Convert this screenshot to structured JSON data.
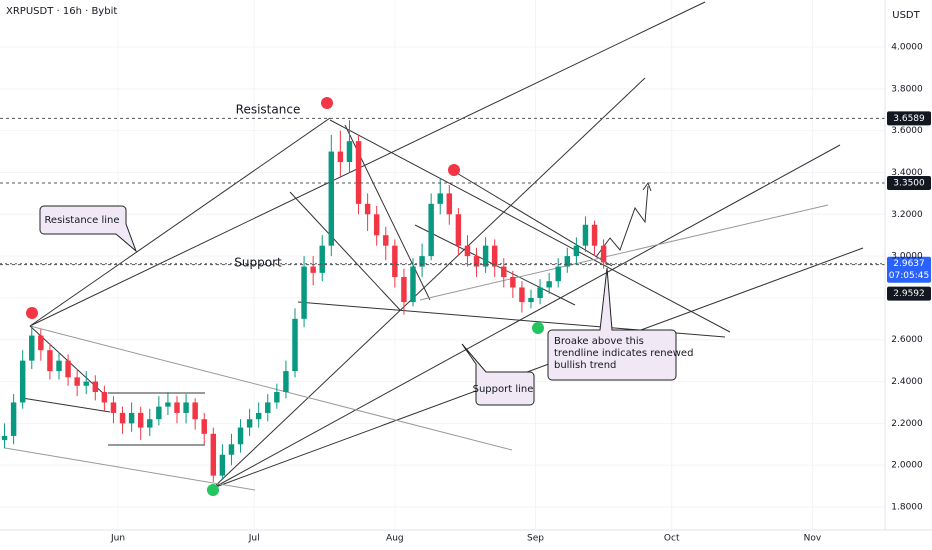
{
  "chart_data": {
    "type": "candlestick",
    "title": "XRPUSDT · 16h · Bybit",
    "currency": "USDT",
    "countdown": "07:05:45",
    "up_color": "#089981",
    "down_color": "#f23645",
    "xlim": [
      -1,
      194
    ],
    "xticks": [
      {
        "value": 25,
        "label": "Jun"
      },
      {
        "value": 55,
        "label": "Jul"
      },
      {
        "value": 86,
        "label": "Aug"
      },
      {
        "value": 117,
        "label": "Sep"
      },
      {
        "value": 147,
        "label": "Oct"
      },
      {
        "value": 178,
        "label": "Nov"
      }
    ],
    "ylim": [
      1.69,
      4.225
    ],
    "yticks": [
      {
        "value": 4,
        "label": "4.0000"
      },
      {
        "value": 3.8,
        "label": "3.8000"
      },
      {
        "value": 3.6,
        "label": "3.6000"
      },
      {
        "value": 3.4,
        "label": "3.4000"
      },
      {
        "value": 3.2,
        "label": "3.2000"
      },
      {
        "value": 3,
        "label": "3.0000"
      },
      {
        "value": 2.8,
        "label": "2.8000"
      },
      {
        "value": 2.6,
        "label": "2.6000"
      },
      {
        "value": 2.4,
        "label": "2.4000"
      },
      {
        "value": 2.2,
        "label": "2.2000"
      },
      {
        "value": 2,
        "label": "2.0000"
      },
      {
        "value": 1.8,
        "label": "1.8000"
      }
    ],
    "price_lines": [
      {
        "value": 3.6589,
        "label": "3.6589"
      },
      {
        "value": 3.35,
        "label": "3.3500"
      },
      {
        "value": 2.9637,
        "label": "2.9637",
        "current": true
      },
      {
        "value": 2.9592,
        "label": "2.9592"
      }
    ],
    "x": [
      0,
      2,
      4,
      6,
      8,
      10,
      12,
      14,
      16,
      18,
      20,
      22,
      24,
      26,
      28,
      30,
      32,
      34,
      36,
      38,
      40,
      42,
      44,
      46,
      48,
      50,
      52,
      54,
      56,
      58,
      60,
      62,
      64,
      66,
      68,
      70,
      72,
      74,
      76,
      78,
      80,
      82,
      84,
      86,
      88,
      90,
      92,
      94,
      96,
      98,
      100,
      102,
      104,
      106,
      108,
      110,
      112,
      114,
      116,
      118,
      120,
      122,
      124,
      126,
      128,
      130,
      132
    ],
    "open": [
      2.12,
      2.14,
      2.3,
      2.5,
      2.62,
      2.55,
      2.45,
      2.5,
      2.42,
      2.38,
      2.4,
      2.35,
      2.3,
      2.25,
      2.2,
      2.25,
      2.18,
      2.22,
      2.28,
      2.3,
      2.25,
      2.3,
      2.22,
      2.15,
      1.95,
      2.05,
      2.1,
      2.18,
      2.22,
      2.25,
      2.3,
      2.35,
      2.45,
      2.7,
      2.95,
      2.92,
      3.05,
      3.5,
      3.45,
      3.55,
      3.25,
      3.2,
      3.1,
      3.05,
      2.9,
      2.78,
      2.95,
      3.0,
      3.25,
      3.3,
      3.2,
      3.05,
      3.0,
      2.95,
      3.05,
      2.95,
      2.9,
      2.85,
      2.78,
      2.8,
      2.85,
      2.88,
      2.95,
      3.0,
      3.05,
      3.15,
      3.05
    ],
    "high": [
      2.2,
      2.34,
      2.55,
      2.67,
      2.65,
      2.58,
      2.54,
      2.53,
      2.46,
      2.45,
      2.43,
      2.38,
      2.33,
      2.28,
      2.3,
      2.28,
      2.27,
      2.33,
      2.35,
      2.33,
      2.34,
      2.32,
      2.25,
      2.18,
      2.1,
      2.15,
      2.22,
      2.27,
      2.3,
      2.34,
      2.39,
      2.5,
      2.75,
      3.0,
      3.0,
      3.1,
      3.58,
      3.6,
      3.65,
      3.58,
      3.3,
      3.24,
      3.14,
      3.08,
      2.94,
      2.99,
      3.06,
      3.3,
      3.37,
      3.34,
      3.23,
      3.1,
      3.04,
      3.09,
      3.08,
      2.99,
      2.93,
      2.88,
      2.84,
      2.89,
      2.92,
      2.99,
      3.04,
      3.09,
      3.19,
      3.17,
      3.08
    ],
    "low": [
      2.08,
      2.1,
      2.27,
      2.46,
      2.5,
      2.41,
      2.41,
      2.38,
      2.33,
      2.34,
      2.31,
      2.26,
      2.2,
      2.15,
      2.16,
      2.12,
      2.14,
      2.19,
      2.24,
      2.2,
      2.2,
      2.17,
      2.1,
      1.92,
      1.93,
      2.0,
      2.06,
      2.14,
      2.18,
      2.21,
      2.27,
      2.32,
      2.42,
      2.66,
      2.86,
      2.88,
      3.0,
      3.38,
      3.4,
      3.2,
      3.12,
      3.05,
      2.98,
      2.85,
      2.72,
      2.76,
      2.9,
      2.98,
      3.2,
      3.15,
      3.0,
      2.95,
      2.9,
      2.92,
      2.9,
      2.85,
      2.8,
      2.73,
      2.75,
      2.77,
      2.82,
      2.85,
      2.92,
      2.96,
      3.02,
      3.0,
      2.94
    ],
    "close": [
      2.14,
      2.3,
      2.5,
      2.62,
      2.55,
      2.45,
      2.5,
      2.42,
      2.38,
      2.4,
      2.35,
      2.3,
      2.25,
      2.2,
      2.25,
      2.18,
      2.22,
      2.28,
      2.3,
      2.25,
      2.3,
      2.22,
      2.15,
      1.95,
      2.05,
      2.1,
      2.18,
      2.22,
      2.25,
      2.3,
      2.35,
      2.45,
      2.7,
      2.95,
      2.92,
      3.05,
      3.5,
      3.45,
      3.55,
      3.25,
      3.2,
      3.1,
      3.05,
      2.9,
      2.78,
      2.95,
      3.0,
      3.25,
      3.3,
      3.2,
      3.05,
      3.0,
      2.95,
      3.05,
      2.95,
      2.9,
      2.85,
      2.78,
      2.8,
      2.85,
      2.88,
      2.95,
      3.0,
      3.05,
      3.15,
      3.05,
      2.97
    ],
    "annotations": {
      "resistance": "Resistance",
      "support": "Support",
      "resistance_line": "Resistance line",
      "support_line": "Support line",
      "breakout": [
        "Broake above this",
        "trendline indicates renewed",
        "bullish trend"
      ]
    }
  }
}
